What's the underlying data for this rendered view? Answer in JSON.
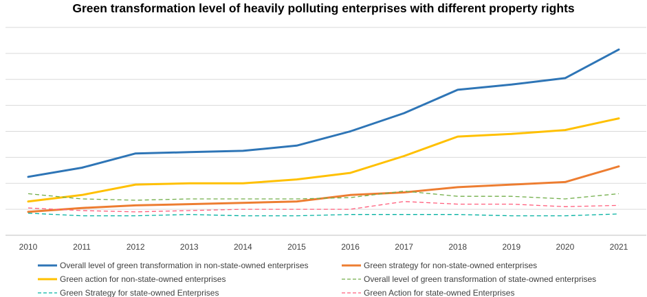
{
  "chart_data": {
    "type": "line",
    "title": "Green transformation level of heavily polluting enterprises with different property rights",
    "xlabel": "",
    "ylabel": "",
    "categories": [
      "2010",
      "2011",
      "2012",
      "2013",
      "2014",
      "2015",
      "2016",
      "2017",
      "2018",
      "2019",
      "2020",
      "2021"
    ],
    "ylim": [
      0,
      8
    ],
    "y_ticks_visible": false,
    "grid": true,
    "legend_position": "bottom",
    "series": [
      {
        "name": "Overall level of green transformation in non-state-owned enterprises",
        "values": [
          2.25,
          2.6,
          3.15,
          3.2,
          3.25,
          3.45,
          4.0,
          4.7,
          5.6,
          5.8,
          6.05,
          7.15
        ],
        "color": "#2e75b6",
        "style": "solid"
      },
      {
        "name": "Green strategy for non-state-owned enterprises",
        "values": [
          0.9,
          1.05,
          1.15,
          1.2,
          1.25,
          1.3,
          1.55,
          1.65,
          1.85,
          1.95,
          2.05,
          2.65
        ],
        "color": "#ed7d31",
        "style": "solid"
      },
      {
        "name": "Green action for non-state-owned enterprises",
        "values": [
          1.3,
          1.55,
          1.95,
          2.0,
          2.0,
          2.15,
          2.4,
          3.05,
          3.8,
          3.9,
          4.05,
          4.5
        ],
        "color": "#ffc000",
        "style": "solid"
      },
      {
        "name": "Overall level of green transformation of state-owned enterprises",
        "values": [
          1.6,
          1.4,
          1.35,
          1.4,
          1.4,
          1.4,
          1.45,
          1.7,
          1.5,
          1.5,
          1.4,
          1.6
        ],
        "color": "#70ad47",
        "style": "dashed"
      },
      {
        "name": "Green Strategy for state-owned Enterprises",
        "values": [
          0.85,
          0.75,
          0.75,
          0.8,
          0.75,
          0.75,
          0.8,
          0.8,
          0.8,
          0.75,
          0.75,
          0.82
        ],
        "color": "#00b0a0",
        "style": "dashed"
      },
      {
        "name": "Green Action for state-owned Enterprises",
        "values": [
          1.05,
          0.95,
          0.9,
          0.95,
          1.0,
          1.0,
          1.0,
          1.3,
          1.2,
          1.2,
          1.1,
          1.15
        ],
        "color": "#ff5c7a",
        "style": "dashed"
      }
    ]
  }
}
